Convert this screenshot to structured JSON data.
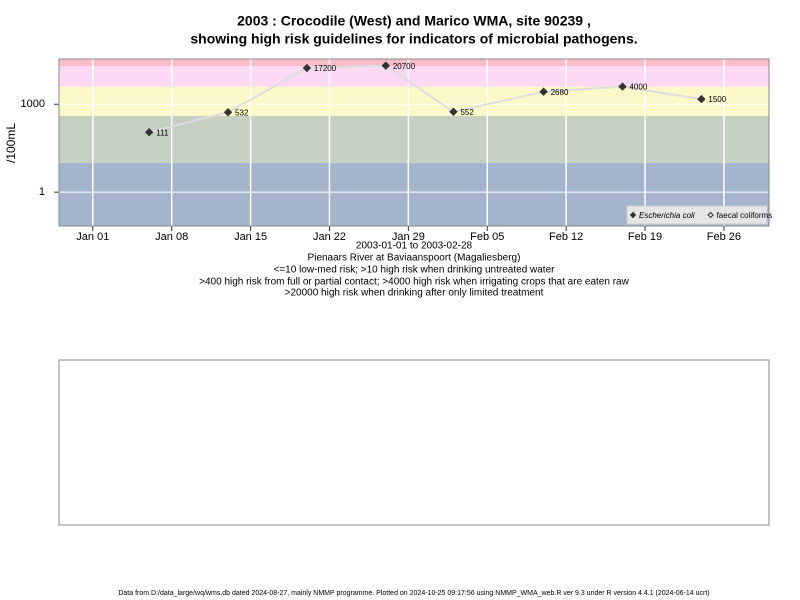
{
  "chart_data": {
    "type": "line",
    "title": "2003 : Crocodile (West) and Marico WMA, site 90239 ,",
    "subtitle": "showing high risk guidelines for indicators of microbial pathogens.",
    "y_label": "/100mL",
    "x_label": "2003-01-01 to 2003-02-28",
    "notes": [
      "Pienaars River at Baviaanspoort (Magaliesberg)",
      "<=10 low-med risk; >10 high risk when drinking untreated water",
      ">400 high risk from full or partial contact; >4000 high risk when irrigating crops that are eaten raw",
      ">20000 high risk when drinking after only limited treatment"
    ],
    "footer": "Data from D:/data_large/wq/wms.db dated 2024-08-27, mainly NMMP programme. Plotted on 2024-10-25 09:17:56 using NMMP_WMA_web.R ver 9.3 under R version 4.4.1 (2024-06-14 ucrt)",
    "x": [
      "2003-01-06",
      "2003-01-13",
      "2003-01-20",
      "2003-01-27",
      "2003-02-02",
      "2003-02-10",
      "2003-02-17",
      "2003-02-24"
    ],
    "series": [
      {
        "name": "Escherichia coli",
        "color": "#333333",
        "marker": "filled",
        "line_color": "#dddddd",
        "values": [
          111,
          532,
          17200,
          20700,
          552,
          2680,
          4000,
          1500
        ]
      },
      {
        "name": "faecal coliforms",
        "color": "#333333",
        "marker": "open",
        "values": [
          null,
          null,
          null,
          null,
          null,
          null,
          null,
          null
        ]
      }
    ],
    "xlim": [
      "2002-12-29",
      "2003-03-02"
    ],
    "xticks": [
      {
        "value": "2003-01-01",
        "label": "Jan 01"
      },
      {
        "value": "2003-01-08",
        "label": "Jan 08"
      },
      {
        "value": "2003-01-15",
        "label": "Jan 15"
      },
      {
        "value": "2003-01-22",
        "label": "Jan 22"
      },
      {
        "value": "2003-01-29",
        "label": "Jan 29"
      },
      {
        "value": "2003-02-05",
        "label": "Feb 05"
      },
      {
        "value": "2003-02-12",
        "label": "Feb 12"
      },
      {
        "value": "2003-02-19",
        "label": "Feb 19"
      },
      {
        "value": "2003-02-26",
        "label": "Feb 26"
      }
    ],
    "ylim": [
      0.07,
      35000
    ],
    "yticks": [
      1,
      1000
    ],
    "log_y": true,
    "grid": true,
    "thresholds": [
      10,
      400,
      4000,
      20000
    ],
    "band_colors": [
      "#a3b4cc",
      "#c5cfc2",
      "#fdf8c8",
      "#fdd9f5",
      "#f9bccb"
    ],
    "legend": "bottom-right"
  }
}
